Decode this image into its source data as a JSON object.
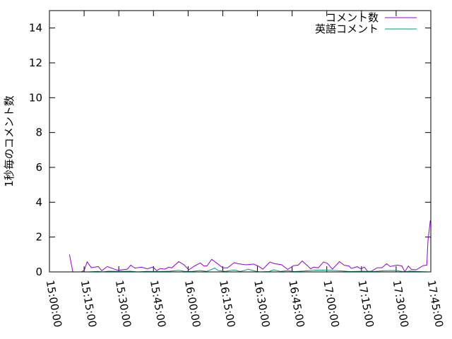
{
  "chart_data": {
    "type": "line",
    "title": "",
    "xlabel": "",
    "ylabel": "1秒毎のコメント数",
    "xlim": [
      "15:00:00",
      "17:45:00"
    ],
    "ylim": [
      0,
      15
    ],
    "x_ticks": [
      "15:00:00",
      "15:15:00",
      "15:30:00",
      "15:45:00",
      "16:00:00",
      "16:15:00",
      "16:30:00",
      "16:45:00",
      "17:00:00",
      "17:15:00",
      "17:30:00",
      "17:45:00"
    ],
    "y_ticks": [
      0,
      2,
      4,
      6,
      8,
      10,
      12,
      14
    ],
    "grid": false,
    "legend": "top-right",
    "series": [
      {
        "name": "コメント数",
        "color": "#9400d3",
        "points": [
          [
            "15:08:40",
            1.0
          ],
          [
            "15:10:06",
            0
          ],
          [
            "15:13:46",
            0
          ],
          [
            "15:15:05",
            0.1
          ],
          [
            "15:16:19",
            0.58
          ],
          [
            "15:18:09",
            0.24
          ],
          [
            "15:21:07",
            0.31
          ],
          [
            "15:22:39",
            0.07
          ],
          [
            "15:25:00",
            0.31
          ],
          [
            "15:29:36",
            0.09
          ],
          [
            "15:33:40",
            0.16
          ],
          [
            "15:35:12",
            0.39
          ],
          [
            "15:36:57",
            0.22
          ],
          [
            "15:39:48",
            0.27
          ],
          [
            "15:42:15",
            0.18
          ],
          [
            "15:44:54",
            0.28
          ],
          [
            "15:46:26",
            0.07
          ],
          [
            "15:47:58",
            0.2
          ],
          [
            "15:50:00",
            0.16
          ],
          [
            "15:51:31",
            0.27
          ],
          [
            "15:52:57",
            0.23
          ],
          [
            "15:55:56",
            0.59
          ],
          [
            "15:58:10",
            0.41
          ],
          [
            "16:00:18",
            0.12
          ],
          [
            "16:02:45",
            0.34
          ],
          [
            "16:05:17",
            0.51
          ],
          [
            "16:06:49",
            0.34
          ],
          [
            "16:08:10",
            0.34
          ],
          [
            "16:10:11",
            0.72
          ],
          [
            "16:12:27",
            0.5
          ],
          [
            "16:15:00",
            0.23
          ],
          [
            "16:17:03",
            0.23
          ],
          [
            "16:19:54",
            0.53
          ],
          [
            "16:21:38",
            0.47
          ],
          [
            "16:24:42",
            0.41
          ],
          [
            "16:25:43",
            0.41
          ],
          [
            "16:28:15",
            0.45
          ],
          [
            "16:30:18",
            0.34
          ],
          [
            "16:32:21",
            0.16
          ],
          [
            "16:35:24",
            0.57
          ],
          [
            "16:37:26",
            0.47
          ],
          [
            "16:40:29",
            0.41
          ],
          [
            "16:43:04",
            0.14
          ],
          [
            "16:45:36",
            0.36
          ],
          [
            "16:47:39",
            0.39
          ],
          [
            "16:49:22",
            0.63
          ],
          [
            "16:51:12",
            0.41
          ],
          [
            "16:53:02",
            0.18
          ],
          [
            "16:54:16",
            0.27
          ],
          [
            "16:56:19",
            0.23
          ],
          [
            "16:58:33",
            0.57
          ],
          [
            "17:00:12",
            0.5
          ],
          [
            "17:02:26",
            0.16
          ],
          [
            "17:05:30",
            0.59
          ],
          [
            "17:07:33",
            0.38
          ],
          [
            "17:09:34",
            0.34
          ],
          [
            "17:10:37",
            0.2
          ],
          [
            "17:13:09",
            0.3
          ],
          [
            "17:14:41",
            0.18
          ],
          [
            "17:16:13",
            0.27
          ],
          [
            "17:17:45",
            0.03
          ],
          [
            "17:19:17",
            0.04
          ],
          [
            "17:21:50",
            0.24
          ],
          [
            "17:23:52",
            0.24
          ],
          [
            "17:25:55",
            0.47
          ],
          [
            "17:27:27",
            0.31
          ],
          [
            "17:30:31",
            0.39
          ],
          [
            "17:32:32",
            0.34
          ],
          [
            "17:33:45",
            0
          ],
          [
            "17:35:17",
            0.34
          ],
          [
            "17:36:38",
            0.14
          ],
          [
            "17:38:39",
            0.12
          ],
          [
            "17:41:42",
            0.36
          ],
          [
            "17:43:15",
            0.39
          ],
          [
            "17:43:46",
            1.8
          ],
          [
            "17:44:47",
            2.95
          ]
        ]
      },
      {
        "name": "英語コメント",
        "color": "#009e73",
        "points": [
          [
            "15:16:40",
            0
          ],
          [
            "15:21:00",
            0.03
          ],
          [
            "15:23:00",
            0
          ],
          [
            "15:25:30",
            0.04
          ],
          [
            "15:30:00",
            0.03
          ],
          [
            "15:35:00",
            0.04
          ],
          [
            "15:38:00",
            0
          ],
          [
            "15:42:00",
            0.03
          ],
          [
            "15:47:00",
            0.02
          ],
          [
            "15:52:00",
            0.04
          ],
          [
            "15:56:00",
            0.09
          ],
          [
            "15:58:30",
            0.03
          ],
          [
            "16:02:00",
            0.03
          ],
          [
            "16:05:00",
            0.08
          ],
          [
            "16:08:00",
            0.03
          ],
          [
            "16:11:30",
            0.22
          ],
          [
            "16:13:00",
            0.08
          ],
          [
            "16:16:00",
            0.03
          ],
          [
            "16:20:00",
            0.11
          ],
          [
            "16:22:30",
            0.03
          ],
          [
            "16:24:30",
            0.09
          ],
          [
            "16:26:00",
            0.16
          ],
          [
            "16:28:30",
            0.06
          ],
          [
            "16:31:00",
            0
          ],
          [
            "16:35:00",
            0.02
          ],
          [
            "16:37:00",
            0.12
          ],
          [
            "16:40:00",
            0.03
          ],
          [
            "16:43:00",
            0.07
          ],
          [
            "16:46:00",
            0.02
          ],
          [
            "16:50:00",
            0.05
          ],
          [
            "16:55:00",
            0.1
          ],
          [
            "17:00:00",
            0.1
          ],
          [
            "17:05:00",
            0.07
          ],
          [
            "17:10:00",
            0.02
          ],
          [
            "17:15:00",
            0.04
          ],
          [
            "17:20:00",
            0.02
          ],
          [
            "17:25:00",
            0.07
          ],
          [
            "17:30:00",
            0.08
          ],
          [
            "17:33:45",
            0
          ],
          [
            "17:36:00",
            0.05
          ],
          [
            "17:40:00",
            0.02
          ],
          [
            "17:44:00",
            0
          ]
        ]
      }
    ]
  }
}
